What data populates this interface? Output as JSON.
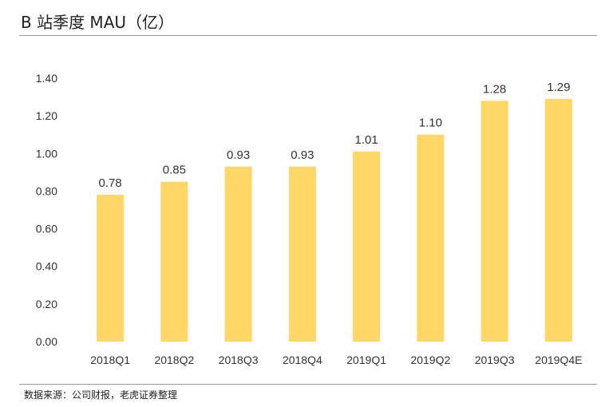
{
  "header": {
    "title": "B 站季度 MAU（亿）"
  },
  "footer": {
    "source": "数据来源：公司财报，老虎证券整理"
  },
  "chart_data": {
    "type": "bar",
    "title": "B 站季度 MAU（亿）",
    "xlabel": "",
    "ylabel": "",
    "categories": [
      "2018Q1",
      "2018Q2",
      "2018Q3",
      "2018Q4",
      "2019Q1",
      "2019Q2",
      "2019Q3",
      "2019Q4E"
    ],
    "values": [
      0.78,
      0.85,
      0.93,
      0.93,
      1.01,
      1.1,
      1.28,
      1.29
    ],
    "value_labels": [
      "0.78",
      "0.85",
      "0.93",
      "0.93",
      "1.01",
      "1.10",
      "1.28",
      "1.29"
    ],
    "ylim": [
      0,
      1.4
    ],
    "yticks": [
      "0.00",
      "0.20",
      "0.40",
      "0.60",
      "0.80",
      "1.00",
      "1.20",
      "1.40"
    ],
    "grid": false,
    "legend": "none",
    "bar_color": "#FDD866"
  }
}
